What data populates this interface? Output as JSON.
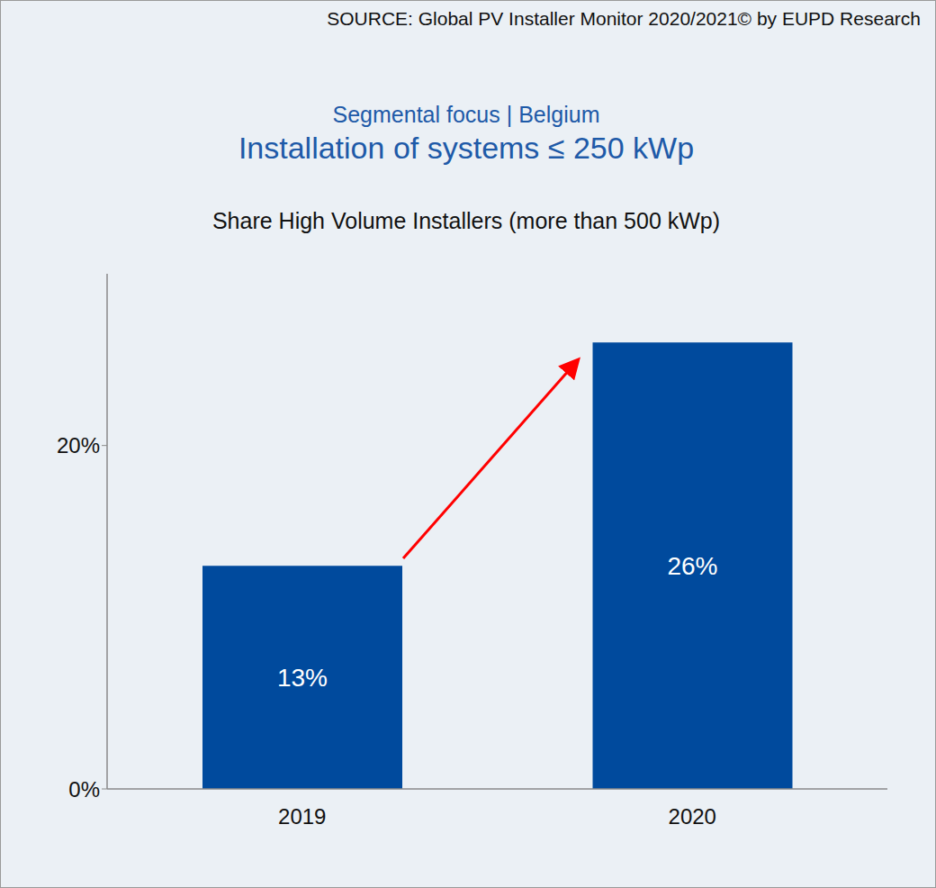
{
  "chart_data": {
    "type": "bar",
    "source": "SOURCE: Global PV Installer Monitor 2020/2021© by EUPD Research",
    "subtitle": "Segmental focus | Belgium",
    "title": "Installation of systems ≤ 250 kWp",
    "chart_label": "Share High Volume Installers (more than 500 kWp)",
    "categories": [
      "2019",
      "2020"
    ],
    "values": [
      13,
      26
    ],
    "value_labels": [
      "13%",
      "26%"
    ],
    "color": "#004a9d",
    "ylim": [
      0,
      30
    ],
    "yticks": [
      {
        "value": 0,
        "label": "0%"
      },
      {
        "value": 20,
        "label": "20%"
      }
    ],
    "grid": false,
    "data_labels": true
  }
}
